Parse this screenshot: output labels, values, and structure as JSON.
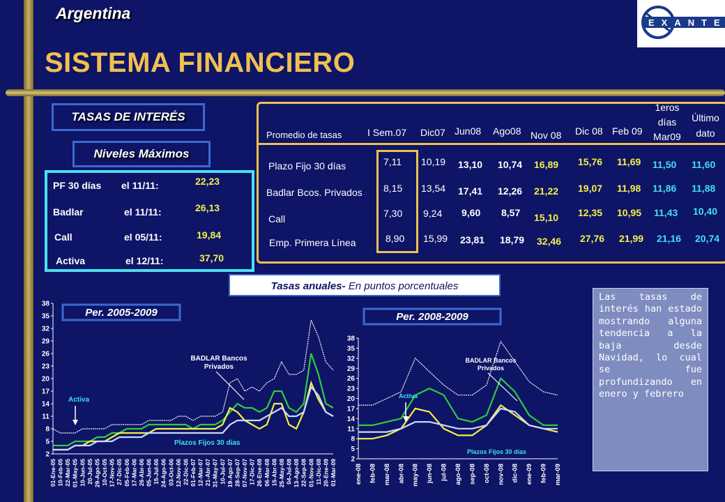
{
  "header": {
    "country": "Argentina",
    "title": "SISTEMA FINANCIERO",
    "logo_text": "EXANTE"
  },
  "tasas_label": "TASAS DE INTERÉS",
  "niveles_label": "Niveles Máximos",
  "maximos": [
    {
      "label": "PF 30 días",
      "date": "el 11/11:",
      "value": "22,23"
    },
    {
      "label": "Badlar",
      "date": "el 11/11:",
      "value": "26,13"
    },
    {
      "label": "Call",
      "date": "el 05/11:",
      "value": "19,84"
    },
    {
      "label": "Activa",
      "date": "el 12/11:",
      "value": "37,70"
    }
  ],
  "table": {
    "row_header": "Promedio de tasas",
    "columns": [
      "I Sem.07",
      "Dic07",
      "Jun08",
      "Ago08",
      "Nov 08",
      "Dic 08",
      "Feb 09",
      "1eros días Mar09",
      "Último dato"
    ],
    "rows": [
      {
        "name": "Plazo Fijo 30 días",
        "values": [
          "7,11",
          "10,19",
          "13,10",
          "10,74",
          "16,89",
          "15,76",
          "11,69",
          "11,50",
          "11,60"
        ]
      },
      {
        "name": "Badlar Bcos. Privados",
        "values": [
          "8,15",
          "13,54",
          "17,41",
          "12,26",
          "21,22",
          "19,07",
          "11,98",
          "11,86",
          "11,88"
        ]
      },
      {
        "name": "Call",
        "values": [
          "7,30",
          "9,24",
          "9,60",
          "8,57",
          "15,10",
          "12,35",
          "10,95",
          "11,43",
          "10,40"
        ]
      },
      {
        "name": "Emp. Primera Línea",
        "values": [
          "8,90",
          "15,99",
          "23,81",
          "18,79",
          "32,46",
          "27,76",
          "21,99",
          "21,16",
          "20,74"
        ]
      }
    ]
  },
  "subtitle_main": "Tasas anuales-",
  "subtitle_sub": " En puntos porcentuales",
  "note": "Las tasas de interés han estado mostrando alguna tendencia a la baja desde Navidad, lo cual se fue profundizando en enero y febrero",
  "colors": {
    "navy": "#0e1466",
    "gold": "#f0c050",
    "green": "#2ecc40",
    "yellow": "#f4f04a",
    "white": "#ffffff"
  },
  "chart_data": [
    {
      "type": "line",
      "title": "Per. 2005-2009",
      "ylim": [
        2,
        38
      ],
      "yticks": [
        2,
        5,
        8,
        11,
        14,
        17,
        20,
        23,
        26,
        29,
        32,
        35,
        38
      ],
      "categories": [
        "01-Ene-05",
        "10-Feb-05",
        "22-Mar-05",
        "01-May-05",
        "10-Jun-05",
        "20-Jul-05",
        "29-Ago-05",
        "10-Oct-05",
        "17-Nov-05",
        "27-Dic-05",
        "05-Feb-06",
        "17-Mar-06",
        "26-Abr-06",
        "05-Jun-06",
        "15-Jul-06",
        "24-Ago-06",
        "03-Oct-06",
        "12-Nov-06",
        "22-Dic-06",
        "01-Feb-07",
        "12-Mar-07",
        "21-Abr-07",
        "31-May-07",
        "10-Jul-07",
        "19-Ago-07",
        "28-Sep-07",
        "07-Nov-07",
        "17-Dic-07",
        "26-Ene-08",
        "06-Mar-08",
        "15-Abr-08",
        "25-May-08",
        "04-Jul-08",
        "13-Ago-08",
        "22-Sep-08",
        "01-Nov-08",
        "11-Dic-08",
        "20-Ene-09",
        "01-Mar-09"
      ],
      "annotations": [
        "BADLAR Bancos Privados",
        "Activa",
        "Plazos Fijos 30 días"
      ],
      "series": [
        {
          "name": "Activa",
          "color": "#ffffff",
          "values": [
            8,
            7,
            7,
            7,
            8,
            8,
            8,
            8,
            9,
            9,
            9,
            9,
            9,
            10,
            10,
            10,
            10,
            11,
            11,
            10,
            11,
            11,
            11,
            12,
            19,
            20,
            17,
            18,
            17,
            19,
            20,
            24,
            21,
            21,
            22,
            34,
            30,
            24,
            22
          ]
        },
        {
          "name": "BADLAR Bancos Privados",
          "color": "#2ecc40",
          "values": [
            4,
            4,
            4,
            5,
            5,
            5,
            6,
            6,
            7,
            7,
            8,
            8,
            8,
            9,
            9,
            9,
            9,
            9,
            9,
            8,
            9,
            9,
            9,
            10,
            12,
            14,
            13,
            13,
            12,
            13,
            17,
            17,
            13,
            12,
            14,
            26,
            21,
            14,
            13
          ]
        },
        {
          "name": "Call",
          "color": "#f4f04a",
          "values": [
            3,
            3,
            3,
            4,
            4,
            5,
            5,
            5,
            6,
            7,
            7,
            7,
            7,
            7,
            8,
            8,
            8,
            8,
            8,
            8,
            8,
            8,
            8,
            9,
            13,
            12,
            10,
            9,
            8,
            9,
            14,
            14,
            9,
            8,
            12,
            19,
            15,
            12,
            11
          ]
        },
        {
          "name": "Plazos Fijos 30 días",
          "color": "#c8d8ff",
          "values": [
            3,
            3,
            3,
            4,
            4,
            4,
            5,
            5,
            5,
            6,
            6,
            6,
            6,
            7,
            7,
            7,
            7,
            7,
            7,
            7,
            7,
            7,
            7,
            7,
            9,
            10,
            10,
            10,
            10,
            11,
            12,
            13,
            11,
            11,
            12,
            18,
            16,
            12,
            11
          ]
        }
      ]
    },
    {
      "type": "line",
      "title": "Per. 2008-2009",
      "ylim": [
        2,
        38
      ],
      "yticks": [
        2,
        5,
        8,
        11,
        14,
        17,
        20,
        23,
        26,
        29,
        32,
        35,
        38
      ],
      "categories": [
        "ene-08",
        "feb-08",
        "mar-08",
        "abr-08",
        "may-08",
        "jun-08",
        "jul-08",
        "ago-08",
        "sep-08",
        "oct-08",
        "nov-08",
        "dic-08",
        "ene-09",
        "feb-09",
        "mar-09"
      ],
      "annotations": [
        "BADLAR Bancos Privados",
        "Activa",
        "Plazos Fijos 30 días"
      ],
      "series": [
        {
          "name": "Activa",
          "color": "#ffffff",
          "values": [
            18,
            18,
            20,
            22,
            32,
            28,
            24,
            21,
            21,
            24,
            37,
            31,
            25,
            22,
            21
          ]
        },
        {
          "name": "BADLAR Bancos Privados",
          "color": "#2ecc40",
          "values": [
            12,
            12,
            13,
            14,
            21,
            23,
            21,
            14,
            13,
            15,
            26,
            22,
            15,
            12,
            12
          ]
        },
        {
          "name": "Call",
          "color": "#f4f04a",
          "values": [
            8,
            8,
            9,
            11,
            17,
            16,
            11,
            9,
            9,
            12,
            18,
            15,
            12,
            11,
            10
          ]
        },
        {
          "name": "Plazos Fijos 30 días",
          "color": "#c8d8ff",
          "values": [
            10,
            10,
            10,
            11,
            13,
            13,
            12,
            11,
            11,
            12,
            17,
            16,
            12,
            11,
            11
          ]
        }
      ]
    }
  ]
}
